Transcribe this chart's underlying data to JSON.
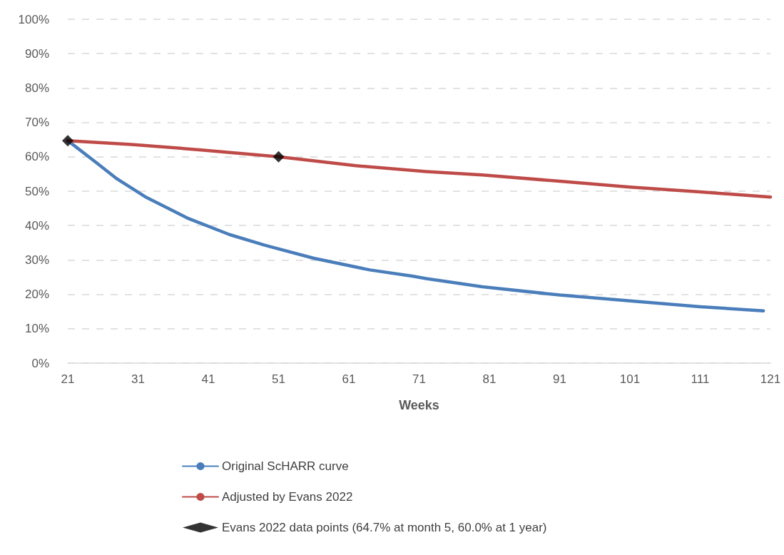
{
  "chart_data": {
    "type": "line",
    "xlabel": "Weeks",
    "xlim": [
      21,
      121
    ],
    "xticks": [
      21,
      31,
      41,
      51,
      61,
      71,
      81,
      91,
      101,
      111,
      121
    ],
    "ylim": [
      0,
      100
    ],
    "yticks": [
      {
        "value": 0,
        "label": "0%"
      },
      {
        "value": 10,
        "label": "10%"
      },
      {
        "value": 20,
        "label": "20%"
      },
      {
        "value": 30,
        "label": "30%"
      },
      {
        "value": 40,
        "label": "40%"
      },
      {
        "value": 50,
        "label": "50%"
      },
      {
        "value": 60,
        "label": "60%"
      },
      {
        "value": 70,
        "label": "70%"
      },
      {
        "value": 80,
        "label": "80%"
      },
      {
        "value": 90,
        "label": "90%"
      },
      {
        "value": 100,
        "label": "100%"
      }
    ],
    "grid": "y",
    "legend": "bottom",
    "line_style": "solid",
    "series": [
      {
        "name": "Original ScHARR curve",
        "color": "#4a7ebb",
        "marker": "none",
        "x": [
          21,
          25,
          28,
          32,
          38,
          44,
          49,
          56,
          64,
          70,
          72,
          80,
          91,
          101,
          111,
          120
        ],
        "values": [
          64.7,
          58.4,
          53.6,
          48.4,
          42.2,
          37.4,
          34.3,
          30.5,
          27.1,
          25.3,
          24.6,
          22.2,
          19.8,
          18.1,
          16.4,
          15.2
        ]
      },
      {
        "name": "Adjusted by Evans 2022",
        "color": "#be4b48",
        "marker": "none",
        "x": [
          21,
          30,
          40,
          51,
          62,
          72,
          80,
          91,
          101,
          111,
          121
        ],
        "values": [
          64.7,
          63.6,
          62.0,
          60.0,
          57.4,
          55.7,
          54.7,
          52.9,
          51.2,
          49.8,
          48.3
        ]
      },
      {
        "name": "Evans 2022 data points (64.7% at month 5, 60.0% at 1 year)",
        "type": "scatter",
        "color": "#000000",
        "marker": "diamond",
        "x": [
          21,
          51
        ],
        "values": [
          64.7,
          60.0
        ]
      }
    ]
  }
}
